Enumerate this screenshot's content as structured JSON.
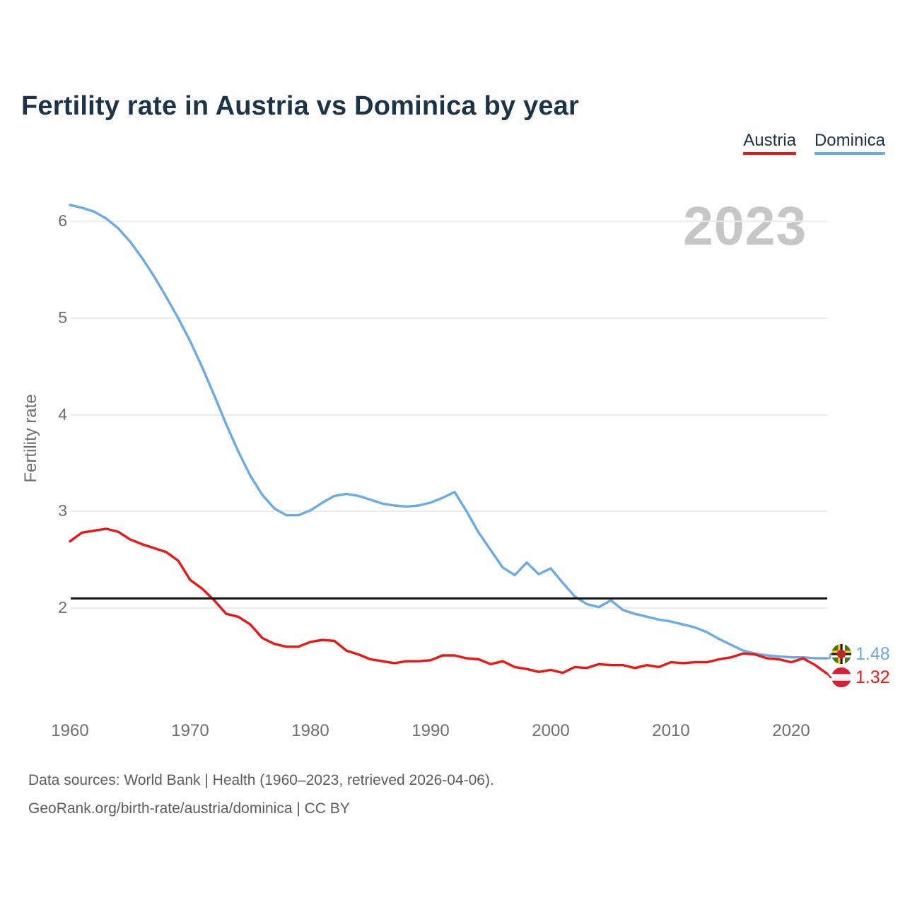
{
  "header": {
    "title": "Fertility rate in Austria vs Dominica by year"
  },
  "legend": [
    {
      "label": "Austria",
      "color": "#ee1515"
    },
    {
      "label": "Dominica",
      "color": "#6aaae6"
    }
  ],
  "watermark": "2023",
  "colors": {
    "title": "#1d3348",
    "austria_line": "#ee1515",
    "dominica_line": "#6aaae6",
    "reference_line": "#111111",
    "axis_text": "#6e6e6e",
    "watermark": "#c6c6c6",
    "gridline": "#ebebeb"
  },
  "chart_data": {
    "type": "line",
    "title": "Fertility rate in Austria vs Dominica by year",
    "xlabel": "",
    "ylabel": "Fertility rate",
    "xlim": [
      1960,
      2023
    ],
    "ylim": [
      1.25,
      6.3
    ],
    "xticks": [
      1960,
      1970,
      1980,
      1990,
      2000,
      2010,
      2020
    ],
    "yticks": [
      2,
      3,
      4,
      5,
      6
    ],
    "grid": true,
    "legend_position": "top-right",
    "reference_line": {
      "value": 2.1,
      "color": "#111111"
    },
    "x": [
      1960,
      1961,
      1962,
      1963,
      1964,
      1965,
      1966,
      1967,
      1968,
      1969,
      1970,
      1971,
      1972,
      1973,
      1974,
      1975,
      1976,
      1977,
      1978,
      1979,
      1980,
      1981,
      1982,
      1983,
      1984,
      1985,
      1986,
      1987,
      1988,
      1989,
      1990,
      1991,
      1992,
      1993,
      1994,
      1995,
      1996,
      1997,
      1998,
      1999,
      2000,
      2001,
      2002,
      2003,
      2004,
      2005,
      2006,
      2007,
      2008,
      2009,
      2010,
      2011,
      2012,
      2013,
      2014,
      2015,
      2016,
      2017,
      2018,
      2019,
      2020,
      2021,
      2022,
      2023
    ],
    "series": [
      {
        "name": "Austria",
        "color": "#ee1515",
        "end_label": "1.32",
        "flag_icon": "austria-flag-icon",
        "values": [
          2.69,
          2.78,
          2.8,
          2.82,
          2.79,
          2.71,
          2.66,
          2.62,
          2.58,
          2.49,
          2.29,
          2.2,
          2.08,
          1.94,
          1.91,
          1.83,
          1.69,
          1.63,
          1.6,
          1.6,
          1.65,
          1.67,
          1.66,
          1.56,
          1.52,
          1.47,
          1.45,
          1.43,
          1.45,
          1.45,
          1.46,
          1.51,
          1.51,
          1.48,
          1.47,
          1.42,
          1.45,
          1.39,
          1.37,
          1.34,
          1.36,
          1.33,
          1.39,
          1.38,
          1.42,
          1.41,
          1.41,
          1.38,
          1.41,
          1.39,
          1.44,
          1.43,
          1.44,
          1.44,
          1.47,
          1.49,
          1.53,
          1.52,
          1.48,
          1.47,
          1.44,
          1.48,
          1.41,
          1.32
        ]
      },
      {
        "name": "Dominica",
        "color": "#6aaae6",
        "end_label": "1.48",
        "flag_icon": "dominica-flag-icon",
        "values": [
          6.17,
          6.14,
          6.1,
          6.03,
          5.93,
          5.79,
          5.62,
          5.43,
          5.22,
          5.0,
          4.76,
          4.49,
          4.2,
          3.9,
          3.62,
          3.37,
          3.17,
          3.03,
          2.96,
          2.96,
          3.01,
          3.09,
          3.16,
          3.18,
          3.16,
          3.12,
          3.08,
          3.06,
          3.05,
          3.06,
          3.09,
          3.14,
          3.2,
          3.0,
          2.78,
          2.6,
          2.42,
          2.34,
          2.47,
          2.35,
          2.41,
          2.26,
          2.12,
          2.04,
          2.01,
          2.08,
          1.98,
          1.94,
          1.91,
          1.88,
          1.86,
          1.83,
          1.8,
          1.75,
          1.68,
          1.62,
          1.56,
          1.53,
          1.51,
          1.5,
          1.49,
          1.49,
          1.48,
          1.48
        ]
      }
    ]
  },
  "footer": {
    "line1": "Data sources: World Bank | Health (1960–2023, retrieved 2026-04-06).",
    "line2": "GeoRank.org/birth-rate/austria/dominica | CC BY"
  }
}
